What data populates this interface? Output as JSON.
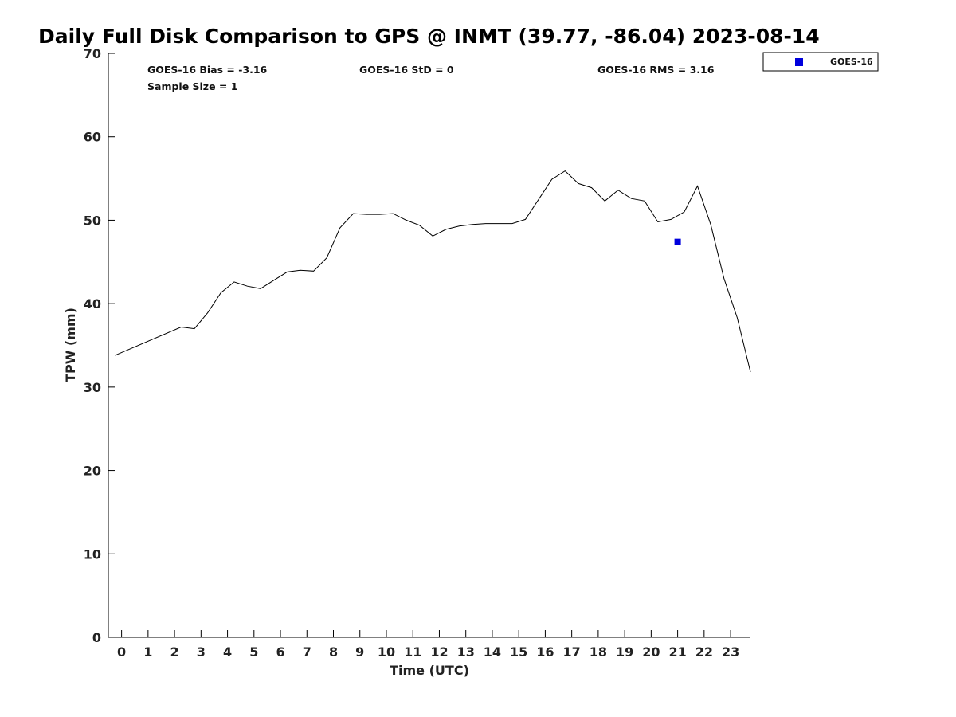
{
  "chart_data": {
    "type": "line",
    "title": "Daily Full Disk Comparison to GPS @ INMT (39.77, -86.04) 2023-08-14",
    "xlabel": "Time (UTC)",
    "ylabel": "TPW (mm)",
    "xlim": [
      -0.5,
      23.75
    ],
    "ylim": [
      0,
      70
    ],
    "x_ticks": [
      0,
      1,
      2,
      3,
      4,
      5,
      6,
      7,
      8,
      9,
      10,
      11,
      12,
      13,
      14,
      15,
      16,
      17,
      18,
      19,
      20,
      21,
      22,
      23
    ],
    "y_ticks": [
      0,
      10,
      20,
      30,
      40,
      50,
      60,
      70
    ],
    "grid": false,
    "series": [
      {
        "name": "GPS",
        "kind": "line",
        "color": "#000000",
        "x": [
          -0.25,
          2.25,
          2.75,
          3.25,
          3.75,
          4.25,
          4.75,
          5.25,
          5.75,
          6.25,
          6.75,
          7.25,
          7.75,
          8.25,
          8.75,
          9.25,
          9.75,
          10.25,
          10.75,
          11.25,
          11.75,
          12.25,
          12.75,
          13.25,
          13.75,
          14.25,
          14.75,
          15.25,
          15.75,
          16.25,
          16.75,
          17.25,
          17.75,
          18.25,
          18.75,
          19.25,
          19.75,
          20.25,
          20.75,
          21.25,
          21.75,
          22.25,
          22.75,
          23.25,
          23.75
        ],
        "y": [
          33.8,
          37.2,
          37.0,
          38.9,
          41.3,
          42.6,
          42.1,
          41.8,
          42.8,
          43.8,
          44.0,
          43.9,
          45.5,
          49.1,
          50.8,
          50.7,
          50.7,
          50.8,
          50.0,
          49.4,
          48.1,
          48.9,
          49.3,
          49.5,
          49.6,
          49.6,
          49.6,
          50.1,
          52.5,
          54.9,
          55.9,
          54.4,
          53.9,
          52.3,
          53.6,
          52.6,
          52.3,
          49.8,
          50.1,
          51.0,
          54.1,
          49.5,
          43.0,
          38.3,
          31.8
        ]
      },
      {
        "name": "GOES-16",
        "kind": "scatter",
        "marker": "square",
        "color": "#0000dd",
        "x": [
          21.0
        ],
        "y": [
          47.4
        ]
      }
    ],
    "legend": {
      "entries": [
        "GOES-16"
      ],
      "placement": "top-right outside"
    },
    "annotations": {
      "bias": "GOES-16 Bias = -3.16",
      "std": "GOES-16 StD = 0",
      "rms": "GOES-16 RMS = 3.16",
      "sample_size": "Sample Size = 1"
    }
  }
}
